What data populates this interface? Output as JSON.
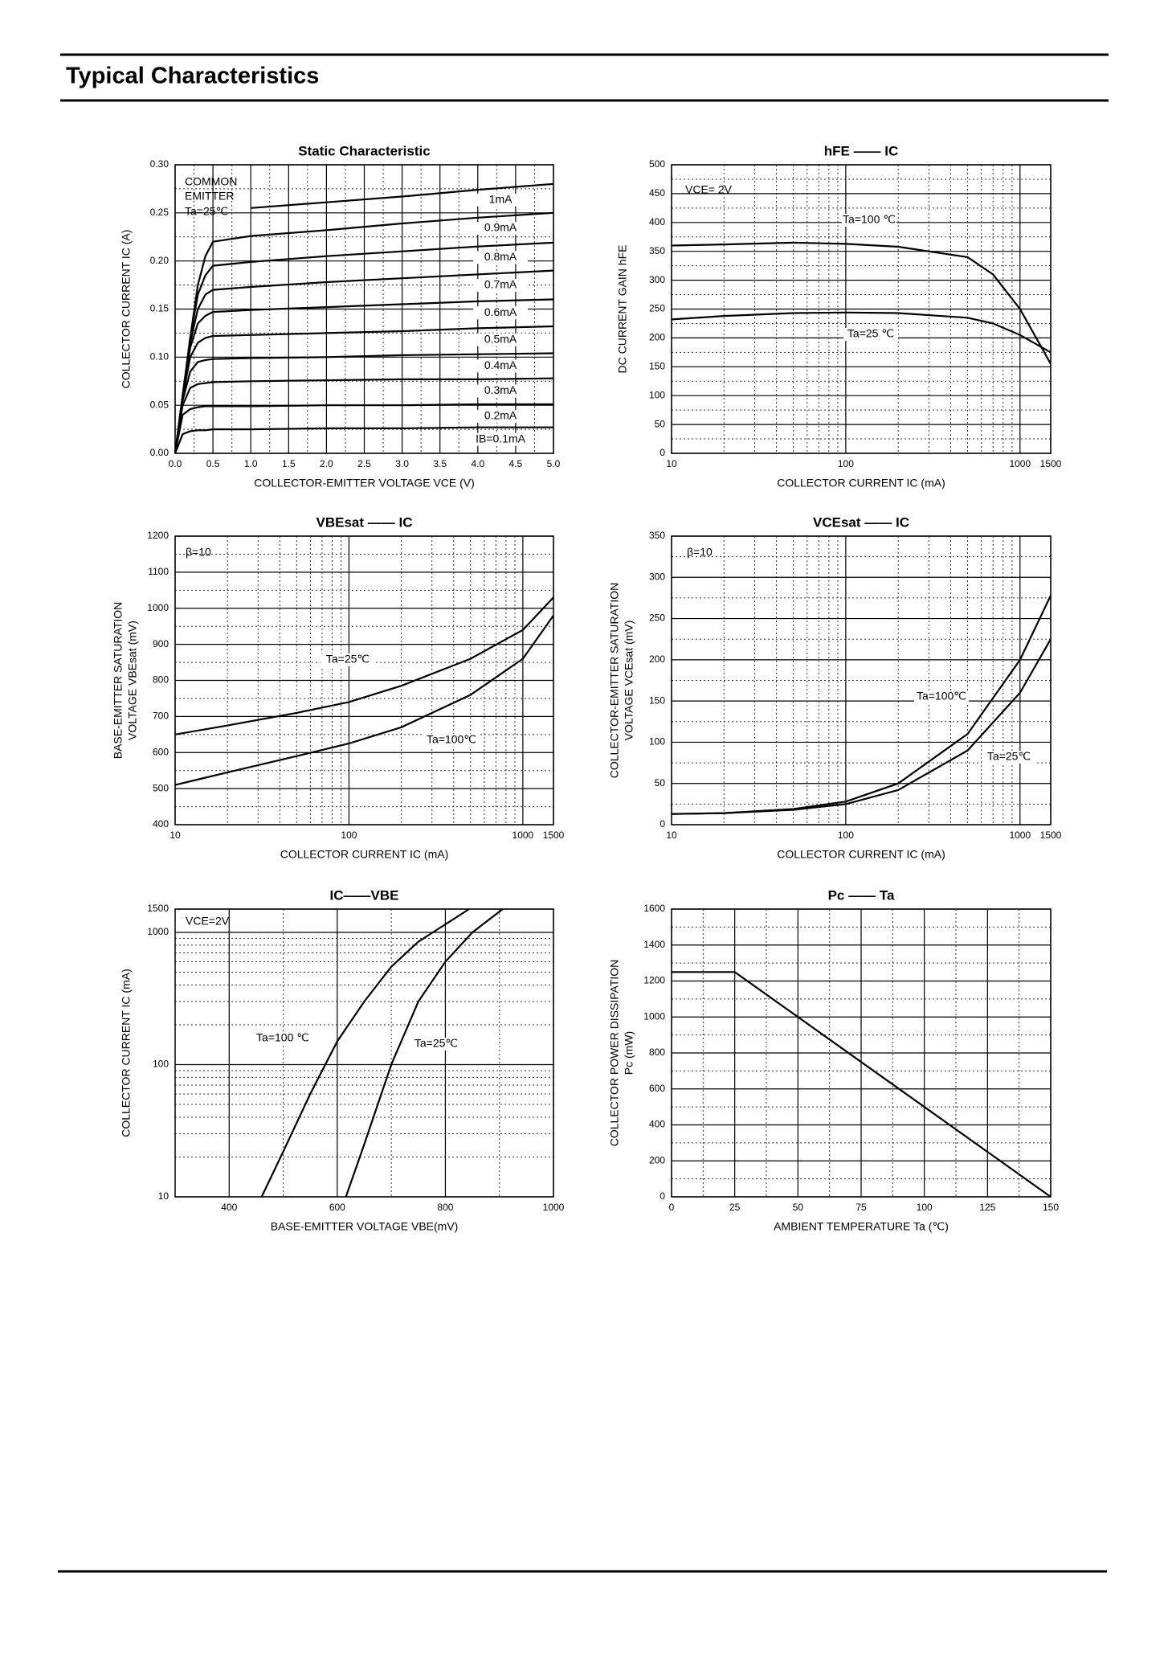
{
  "header": {
    "title": "Typical Characteristics"
  },
  "chart_data": [
    {
      "type": "line",
      "title": "Static Characteristic",
      "xlabel": "COLLECTOR-EMITTER VOLTAGE  VCE  (V)",
      "ylabel": [
        "COLLECTOR CURRENT  IC  (A)"
      ],
      "annotations": [
        "COMMON",
        "EMITTER",
        "Ta=25℃"
      ],
      "xlim": [
        0,
        5
      ],
      "ylim": [
        0,
        0.3
      ],
      "xticks": [
        {
          "value": 0,
          "label": "0.0"
        },
        0.5,
        {
          "value": 1,
          "label": "1.0"
        },
        1.5,
        {
          "value": 2,
          "label": "2.0"
        },
        2.5,
        {
          "value": 3,
          "label": "3.0"
        },
        3.5,
        {
          "value": 4,
          "label": "4.0"
        },
        4.5,
        {
          "value": 5,
          "label": "5.0"
        }
      ],
      "yticks": [
        {
          "value": 0,
          "label": "0.00"
        },
        0.05,
        {
          "value": 0.1,
          "label": "0.10"
        },
        0.15,
        {
          "value": 0.2,
          "label": "0.20"
        },
        0.25,
        {
          "value": 0.3,
          "label": "0.30"
        }
      ],
      "grid": true,
      "x": [
        0,
        0.1,
        0.2,
        0.3,
        0.4,
        0.5,
        1,
        2,
        3,
        4,
        5
      ],
      "series": [
        {
          "name": "IB=0.1mA",
          "color": "#000000",
          "values": [
            0,
            0.02,
            0.023,
            0.024,
            0.024,
            0.025,
            0.025,
            0.026,
            0.026,
            0.027,
            0.027
          ]
        },
        {
          "name": "0.2mA",
          "color": "#000000",
          "values": [
            0,
            0.04,
            0.046,
            0.048,
            0.049,
            0.049,
            0.049,
            0.05,
            0.05,
            0.051,
            0.051
          ]
        },
        {
          "name": "0.3mA",
          "color": "#000000",
          "values": [
            0,
            0.05,
            0.068,
            0.072,
            0.073,
            0.074,
            0.075,
            0.076,
            0.077,
            0.077,
            0.078
          ]
        },
        {
          "name": "0.4mA",
          "color": "#000000",
          "values": [
            0,
            0.055,
            0.085,
            0.095,
            0.097,
            0.098,
            0.099,
            0.1,
            0.102,
            0.103,
            0.104
          ]
        },
        {
          "name": "0.5mA",
          "color": "#000000",
          "values": [
            0,
            0.058,
            0.1,
            0.115,
            0.12,
            0.122,
            0.123,
            0.125,
            0.127,
            0.13,
            0.132
          ]
        },
        {
          "name": "0.6mA",
          "color": "#000000",
          "values": [
            0,
            0.06,
            0.11,
            0.135,
            0.143,
            0.147,
            0.149,
            0.152,
            0.155,
            0.158,
            0.16
          ]
        },
        {
          "name": "0.7mA",
          "color": "#000000",
          "values": [
            0,
            0.06,
            0.115,
            0.15,
            0.165,
            0.17,
            0.173,
            0.178,
            0.182,
            0.186,
            0.19
          ]
        },
        {
          "name": "0.8mA",
          "color": "#000000",
          "values": [
            0,
            0.06,
            0.12,
            0.165,
            0.185,
            0.195,
            0.199,
            0.205,
            0.21,
            0.215,
            0.219
          ]
        },
        {
          "name": "0.9mA",
          "color": "#000000",
          "values": [
            0,
            0.06,
            0.12,
            0.175,
            0.205,
            0.22,
            0.226,
            0.232,
            0.239,
            0.245,
            0.25
          ]
        },
        {
          "name": "1mA",
          "color": "#000000",
          "values": [
            null,
            null,
            null,
            null,
            null,
            null,
            0.255,
            0.261,
            0.267,
            0.274,
            0.28
          ]
        }
      ]
    },
    {
      "type": "line",
      "title": "hFE —— IC",
      "xlabel": "COLLECTOR CURRENT  IC  (mA)",
      "ylabel": [
        "DC CURRENT GAIN  hFE"
      ],
      "annotations": [
        "VCE= 2V"
      ],
      "xscale": "log",
      "xlim": [
        10,
        1500
      ],
      "ylim": [
        0,
        500
      ],
      "xticks": [
        10,
        100,
        1000,
        1500
      ],
      "yticks": [
        0,
        50,
        100,
        150,
        200,
        250,
        300,
        350,
        400,
        450,
        500
      ],
      "grid": true,
      "x": [
        10,
        20,
        50,
        100,
        200,
        500,
        700,
        1000,
        1500
      ],
      "series": [
        {
          "name": "Ta=100 ℃",
          "color": "#000000",
          "values": [
            360,
            362,
            365,
            363,
            358,
            340,
            310,
            250,
            155
          ]
        },
        {
          "name": "Ta=25 ℃",
          "color": "#000000",
          "values": [
            232,
            238,
            243,
            244,
            243,
            235,
            225,
            205,
            175
          ]
        }
      ]
    },
    {
      "type": "line",
      "title": "VBEsat —— IC",
      "xlabel": "COLLECTOR CURRENT  IC  (mA)",
      "ylabel": [
        "BASE-EMITTER SATURATION",
        "VOLTAGE  VBEsat  (mV)"
      ],
      "annotations": [
        "β=10"
      ],
      "xscale": "log",
      "xlim": [
        10,
        1500
      ],
      "ylim": [
        400,
        1200
      ],
      "xticks": [
        10,
        100,
        1000,
        1500
      ],
      "yticks": [
        400,
        500,
        600,
        700,
        800,
        900,
        1000,
        1100,
        1200
      ],
      "grid": true,
      "x": [
        10,
        20,
        50,
        100,
        200,
        500,
        1000,
        1500
      ],
      "series": [
        {
          "name": "Ta=25℃",
          "color": "#000000",
          "values": [
            650,
            675,
            710,
            740,
            785,
            860,
            940,
            1030
          ]
        },
        {
          "name": "Ta=100℃",
          "color": "#000000",
          "values": [
            510,
            545,
            590,
            625,
            670,
            760,
            860,
            980
          ]
        }
      ]
    },
    {
      "type": "line",
      "title": "VCEsat —— IC",
      "xlabel": "COLLECTOR CURRENT  IC  (mA)",
      "ylabel": [
        "COLLECTOR-EMITTER SATURATION",
        "VOLTAGE  VCEsat  (mV)"
      ],
      "annotations": [
        "β=10"
      ],
      "xscale": "log",
      "xlim": [
        10,
        1500
      ],
      "ylim": [
        0,
        350
      ],
      "xticks": [
        10,
        100,
        1000,
        1500
      ],
      "yticks": [
        0,
        50,
        100,
        150,
        200,
        250,
        300,
        350
      ],
      "grid": true,
      "x": [
        10,
        20,
        50,
        100,
        200,
        500,
        1000,
        1500
      ],
      "series": [
        {
          "name": "Ta=100℃",
          "color": "#000000",
          "values": [
            13,
            14,
            19,
            28,
            50,
            110,
            200,
            278
          ]
        },
        {
          "name": "Ta=25℃",
          "color": "#000000",
          "values": [
            13,
            14,
            18,
            25,
            42,
            90,
            160,
            225
          ]
        }
      ]
    },
    {
      "type": "line",
      "title": "IC——VBE",
      "xlabel": "BASE-EMITTER VOLTAGE  VBE(mV)",
      "ylabel": [
        "COLLECTOR CURRENT  IC (mA)"
      ],
      "annotations": [
        "VCE=2V"
      ],
      "yscale": "log",
      "xlim": [
        300,
        1000
      ],
      "ylim": [
        10,
        1500
      ],
      "xticks": [
        400,
        600,
        800,
        1000
      ],
      "yticks": [
        10,
        100,
        1000,
        1500
      ],
      "grid": true,
      "series": [
        {
          "name": "Ta=100 ℃",
          "color": "#000000",
          "x": [
            460,
            500,
            550,
            600,
            650,
            700,
            750,
            800,
            844
          ],
          "values": [
            10,
            22,
            60,
            150,
            300,
            550,
            850,
            1150,
            1500
          ]
        },
        {
          "name": "Ta=25℃",
          "color": "#000000",
          "x": [
            616,
            650,
            700,
            750,
            800,
            850,
            906
          ],
          "values": [
            10,
            25,
            100,
            300,
            600,
            1000,
            1500
          ]
        }
      ]
    },
    {
      "type": "line",
      "title": "Pc —— Ta",
      "xlabel": "AMBIENT TEMPERATURE  Ta  (℃)",
      "ylabel": [
        "COLLECTOR POWER DISSIPATION",
        "Pc  (mW)"
      ],
      "xlim": [
        0,
        150
      ],
      "ylim": [
        0,
        1600
      ],
      "xticks": [
        0,
        25,
        50,
        75,
        100,
        125,
        150
      ],
      "yticks": [
        0,
        200,
        400,
        600,
        800,
        1000,
        1200,
        1400,
        1600
      ],
      "grid": true,
      "color": "#000000",
      "x": [
        0,
        25,
        150
      ],
      "values": [
        1250,
        1250,
        0
      ]
    }
  ]
}
